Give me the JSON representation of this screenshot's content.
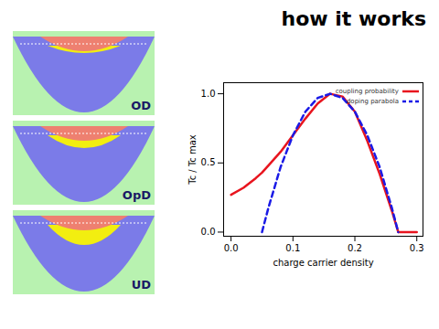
{
  "chart_data": {
    "type": "line",
    "title": "how it works",
    "x_label": "charge carrier density",
    "y_label": "Tc / Tc max",
    "x": [
      0,
      0.02,
      0.04,
      0.05,
      0.06,
      0.08,
      0.1,
      0.12,
      0.14,
      0.16,
      0.18,
      0.2,
      0.22,
      0.24,
      0.26,
      0.27,
      0.28,
      0.3
    ],
    "series": [
      {
        "name": "coupling probability",
        "color": "#e8141e",
        "line_style": "solid",
        "values": [
          0.27,
          0.32,
          0.39,
          0.43,
          0.48,
          0.58,
          0.7,
          0.82,
          0.93,
          1.0,
          0.98,
          0.87,
          0.66,
          0.42,
          0.15,
          0.0,
          0.0,
          0.0
        ]
      },
      {
        "name": "doping parabola",
        "color": "#1a1ae6",
        "line_style": "dashed",
        "values": [
          null,
          null,
          null,
          0.0,
          0.17,
          0.47,
          0.7,
          0.87,
          0.97,
          1.0,
          0.97,
          0.87,
          0.7,
          0.47,
          0.17,
          0.0,
          null,
          null
        ]
      }
    ],
    "xlim": [
      -0.012,
      0.31
    ],
    "ylim": [
      -0.03,
      1.08
    ],
    "xticks": [
      {
        "value": 0,
        "label": "0.0"
      },
      {
        "value": 0.1,
        "label": "0.1"
      },
      {
        "value": 0.2,
        "label": "0.2"
      },
      {
        "value": 0.3,
        "label": "0.3"
      }
    ],
    "yticks": [
      {
        "value": 0,
        "label": "0.0"
      },
      {
        "value": 0.5,
        "label": "0.5"
      },
      {
        "value": 1,
        "label": "1.0"
      }
    ],
    "legend": "top-right",
    "grid": false
  },
  "diagrams": {
    "labels": [
      "OD",
      "OpD",
      "UD"
    ]
  }
}
